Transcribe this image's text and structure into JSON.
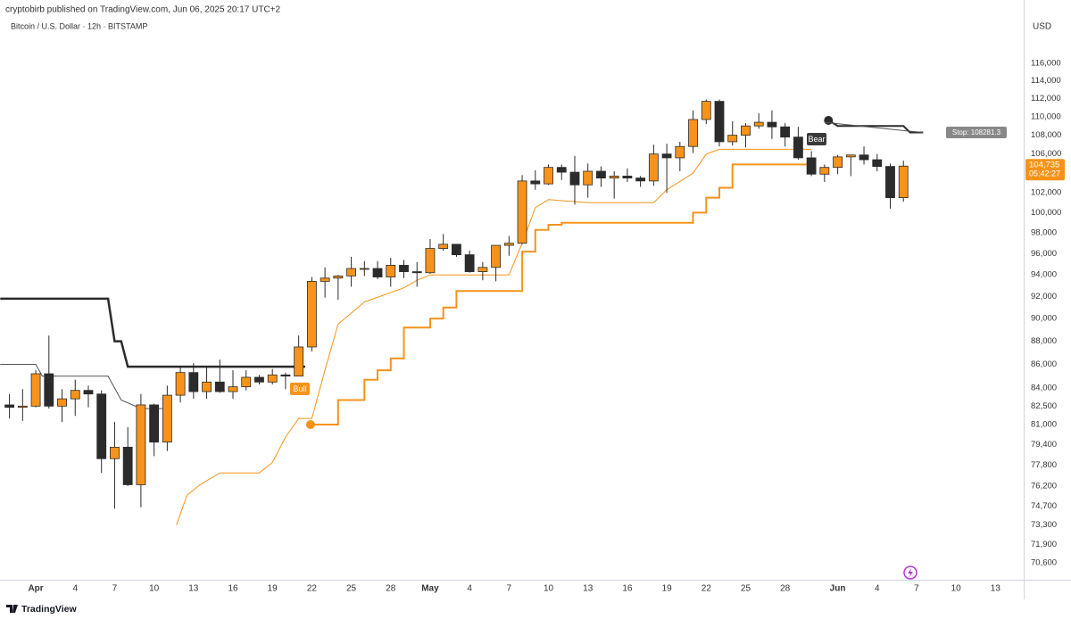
{
  "header": {
    "published": "cryptobirb published on TradingView.com, Jun 06, 2025 20:17 UTC+2",
    "symbol": "Bitcoin / U.S. Dollar · 12h · BITSTAMP",
    "currency": "USD",
    "logo": "TradingView"
  },
  "chart_data": {
    "type": "candlestick",
    "x": [
      -2,
      -1,
      0,
      1,
      2,
      3,
      4,
      5,
      6,
      7,
      8,
      9,
      10,
      11,
      12,
      13,
      14,
      15,
      16,
      17,
      18,
      19,
      20,
      21,
      22,
      23,
      24,
      25,
      26,
      27,
      28,
      29,
      30,
      31,
      32,
      33,
      34,
      35,
      36,
      37,
      38,
      39,
      40,
      41,
      42,
      43,
      44,
      45,
      46,
      47,
      48,
      49,
      50,
      51,
      52,
      53,
      54,
      55,
      56,
      57,
      58,
      59,
      60,
      61,
      62,
      63,
      64,
      65,
      66
    ],
    "open": [
      82600,
      82400,
      82500,
      85200,
      82500,
      83100,
      83800,
      83500,
      78300,
      79200,
      76300,
      82600,
      79600,
      83400,
      85300,
      83700,
      84500,
      83700,
      84100,
      84900,
      84500,
      85100,
      85000,
      87500,
      93400,
      93700,
      93900,
      94600,
      94600,
      93800,
      94900,
      94300,
      94200,
      96500,
      96900,
      95900,
      94300,
      94700,
      96800,
      97000,
      103200,
      102900,
      104600,
      104100,
      102800,
      104200,
      103500,
      103700,
      103500,
      103200,
      106000,
      105600,
      106800,
      109700,
      111700,
      107300,
      108000,
      109000,
      109400,
      108900,
      107800,
      105600,
      103900,
      104600,
      105700,
      105900,
      105400,
      104700,
      101500
    ],
    "high": [
      83500,
      83900,
      85500,
      88500,
      83900,
      84700,
      84200,
      83800,
      81200,
      80800,
      83500,
      82700,
      84200,
      85800,
      86100,
      85800,
      86400,
      85500,
      85500,
      85100,
      85600,
      85300,
      88500,
      93800,
      94700,
      94000,
      95700,
      95300,
      95300,
      95600,
      95400,
      95200,
      97400,
      97900,
      96900,
      96300,
      95200,
      96800,
      97700,
      103800,
      104300,
      104900,
      104900,
      105800,
      105000,
      104700,
      104200,
      104500,
      103700,
      107000,
      107100,
      107300,
      110700,
      111900,
      111900,
      109500,
      109300,
      110400,
      110700,
      109300,
      108900,
      106300,
      104900,
      105900,
      105900,
      106800,
      106000,
      105000,
      105300
    ],
    "low": [
      81500,
      81300,
      82400,
      82300,
      81200,
      81700,
      82400,
      77200,
      74500,
      76200,
      74600,
      78500,
      78900,
      82800,
      83100,
      83100,
      83600,
      83100,
      83800,
      84300,
      84300,
      83900,
      85000,
      87100,
      91900,
      91700,
      92900,
      93900,
      93600,
      92900,
      93700,
      92900,
      94100,
      96300,
      95700,
      94200,
      93500,
      93400,
      95800,
      96900,
      102300,
      102800,
      103300,
      100800,
      101500,
      102600,
      101400,
      103100,
      102600,
      102700,
      102000,
      104200,
      106100,
      109200,
      106800,
      106900,
      106700,
      108700,
      107600,
      106800,
      105400,
      103700,
      103100,
      103900,
      103700,
      104900,
      104200,
      100400,
      101100
    ],
    "close": [
      82400,
      82500,
      85200,
      82500,
      83100,
      83800,
      83500,
      78300,
      79200,
      76300,
      82600,
      79600,
      83400,
      85300,
      83700,
      84500,
      83700,
      84100,
      84900,
      84500,
      85100,
      85000,
      87500,
      93400,
      93700,
      93900,
      94600,
      94600,
      93800,
      94900,
      94300,
      94200,
      96500,
      96900,
      95900,
      94300,
      94700,
      96800,
      97000,
      103200,
      102900,
      104600,
      104100,
      102800,
      104200,
      103500,
      103700,
      103500,
      103200,
      106000,
      105600,
      106800,
      109700,
      111700,
      107300,
      108000,
      109000,
      109400,
      108900,
      107800,
      105600,
      103900,
      104600,
      105700,
      105900,
      105400,
      104700,
      101500,
      104735
    ],
    "up_color": "#f7931a",
    "down_color": "#2b2b2b",
    "lines": [
      {
        "color": "#f7931a",
        "width": 2,
        "dot": true,
        "x": [
          20.9,
          23,
          23,
          25,
          25,
          26,
          26,
          27,
          27,
          28,
          28,
          30,
          30,
          31,
          31,
          32,
          32,
          33,
          33,
          37,
          37,
          38,
          38,
          39,
          39,
          40,
          40,
          41,
          41,
          50,
          50,
          51,
          51,
          52,
          52,
          53,
          53,
          59.3
        ],
        "values": [
          81000,
          81000,
          83000,
          83000,
          84700,
          84700,
          85500,
          85500,
          86500,
          86500,
          89200,
          89200,
          90000,
          90000,
          91000,
          91000,
          92500,
          92500,
          92500,
          92500,
          96200,
          96200,
          98300,
          98300,
          98800,
          98800,
          99000,
          99000,
          99000,
          99000,
          100000,
          100000,
          101500,
          101500,
          102500,
          102500,
          104900,
          104900
        ]
      },
      {
        "color": "#f7931a",
        "width": 1,
        "dot": false,
        "x": [
          10.7,
          11.5,
          12.5,
          14,
          17,
          18,
          19,
          20,
          21,
          22,
          23,
          25,
          28,
          29,
          30,
          36,
          37,
          38,
          39,
          42,
          47,
          48,
          50,
          51,
          52,
          59
        ],
        "values": [
          73300,
          75500,
          76300,
          77200,
          77200,
          78000,
          80000,
          81500,
          81500,
          85500,
          89500,
          91500,
          92800,
          93500,
          94000,
          94000,
          97000,
          100500,
          101300,
          101000,
          101000,
          102300,
          104000,
          106000,
          106500,
          106500
        ]
      },
      {
        "color": "#2b2b2b",
        "width": 2.5,
        "dot": false,
        "x": [
          -2.7,
          5.5,
          6,
          6.5,
          7,
          20.5
        ],
        "values": [
          91800,
          91800,
          88000,
          88000,
          85800,
          85800
        ]
      },
      {
        "color": "#555555",
        "width": 1,
        "dot": false,
        "x": [
          -2.7,
          0,
          0.5,
          5.5,
          6.5,
          8,
          10
        ],
        "values": [
          86000,
          86000,
          85000,
          85000,
          83000,
          82300,
          82300
        ]
      },
      {
        "color": "#2b2b2b",
        "width": 2,
        "dot": true,
        "x": [
          60.3,
          61,
          66,
          66.5,
          67.5
        ],
        "values": [
          109600,
          109000,
          109000,
          108300,
          108300
        ]
      },
      {
        "color": "#555555",
        "width": 1,
        "dot": false,
        "x": [
          60,
          66,
          67.5
        ],
        "values": [
          109400,
          108500,
          108300
        ]
      }
    ],
    "annotations": [
      "Bull",
      "Bear"
    ],
    "stop_label": "Stop: 108281.3",
    "price_label": "104,735",
    "countdown": "05:42:27",
    "log": true,
    "xlim": [
      -2.72,
      75.15
    ],
    "ylim": [
      69420,
      123540
    ],
    "xticks": [
      {
        "value": 0,
        "label": "Apr"
      },
      {
        "value": 3,
        "label": "4"
      },
      {
        "value": 6,
        "label": "7"
      },
      {
        "value": 9,
        "label": "10"
      },
      {
        "value": 12,
        "label": "13"
      },
      {
        "value": 15,
        "label": "16"
      },
      {
        "value": 18,
        "label": "19"
      },
      {
        "value": 21,
        "label": "22"
      },
      {
        "value": 24,
        "label": "25"
      },
      {
        "value": 27,
        "label": "28"
      },
      {
        "value": 30,
        "label": "May"
      },
      {
        "value": 33,
        "label": "4"
      },
      {
        "value": 36,
        "label": "7"
      },
      {
        "value": 39,
        "label": "10"
      },
      {
        "value": 42,
        "label": "13"
      },
      {
        "value": 45,
        "label": "16"
      },
      {
        "value": 48,
        "label": "19"
      },
      {
        "value": 51,
        "label": "22"
      },
      {
        "value": 54,
        "label": "25"
      },
      {
        "value": 57,
        "label": "28"
      },
      {
        "value": 61,
        "label": "Jun"
      },
      {
        "value": 64,
        "label": "4"
      },
      {
        "value": 67,
        "label": "7"
      },
      {
        "value": 70,
        "label": "10"
      },
      {
        "value": 73,
        "label": "13"
      }
    ],
    "yticks": [
      {
        "value": 116000,
        "label": "116,000"
      },
      {
        "value": 114000,
        "label": "114,000"
      },
      {
        "value": 112000,
        "label": "112,000"
      },
      {
        "value": 110000,
        "label": "110,000"
      },
      {
        "value": 108000,
        "label": "108,000"
      },
      {
        "value": 106000,
        "label": "106,000"
      },
      {
        "value": 102000,
        "label": "102,000"
      },
      {
        "value": 100000,
        "label": "100,000"
      },
      {
        "value": 98000,
        "label": "98,000"
      },
      {
        "value": 96000,
        "label": "96,000"
      },
      {
        "value": 94000,
        "label": "94,000"
      },
      {
        "value": 92000,
        "label": "92,000"
      },
      {
        "value": 90000,
        "label": "90,000"
      },
      {
        "value": 88000,
        "label": "88,000"
      },
      {
        "value": 86000,
        "label": "86,000"
      },
      {
        "value": 84000,
        "label": "84,000"
      },
      {
        "value": 82500,
        "label": "82,500"
      },
      {
        "value": 81000,
        "label": "81,000"
      },
      {
        "value": 79400,
        "label": "79,400"
      },
      {
        "value": 77800,
        "label": "77,800"
      },
      {
        "value": 76200,
        "label": "76,200"
      },
      {
        "value": 74700,
        "label": "74,700"
      },
      {
        "value": 73300,
        "label": "73,300"
      },
      {
        "value": 71900,
        "label": "71,900"
      },
      {
        "value": 70600,
        "label": "70,600"
      }
    ],
    "grid": false
  }
}
